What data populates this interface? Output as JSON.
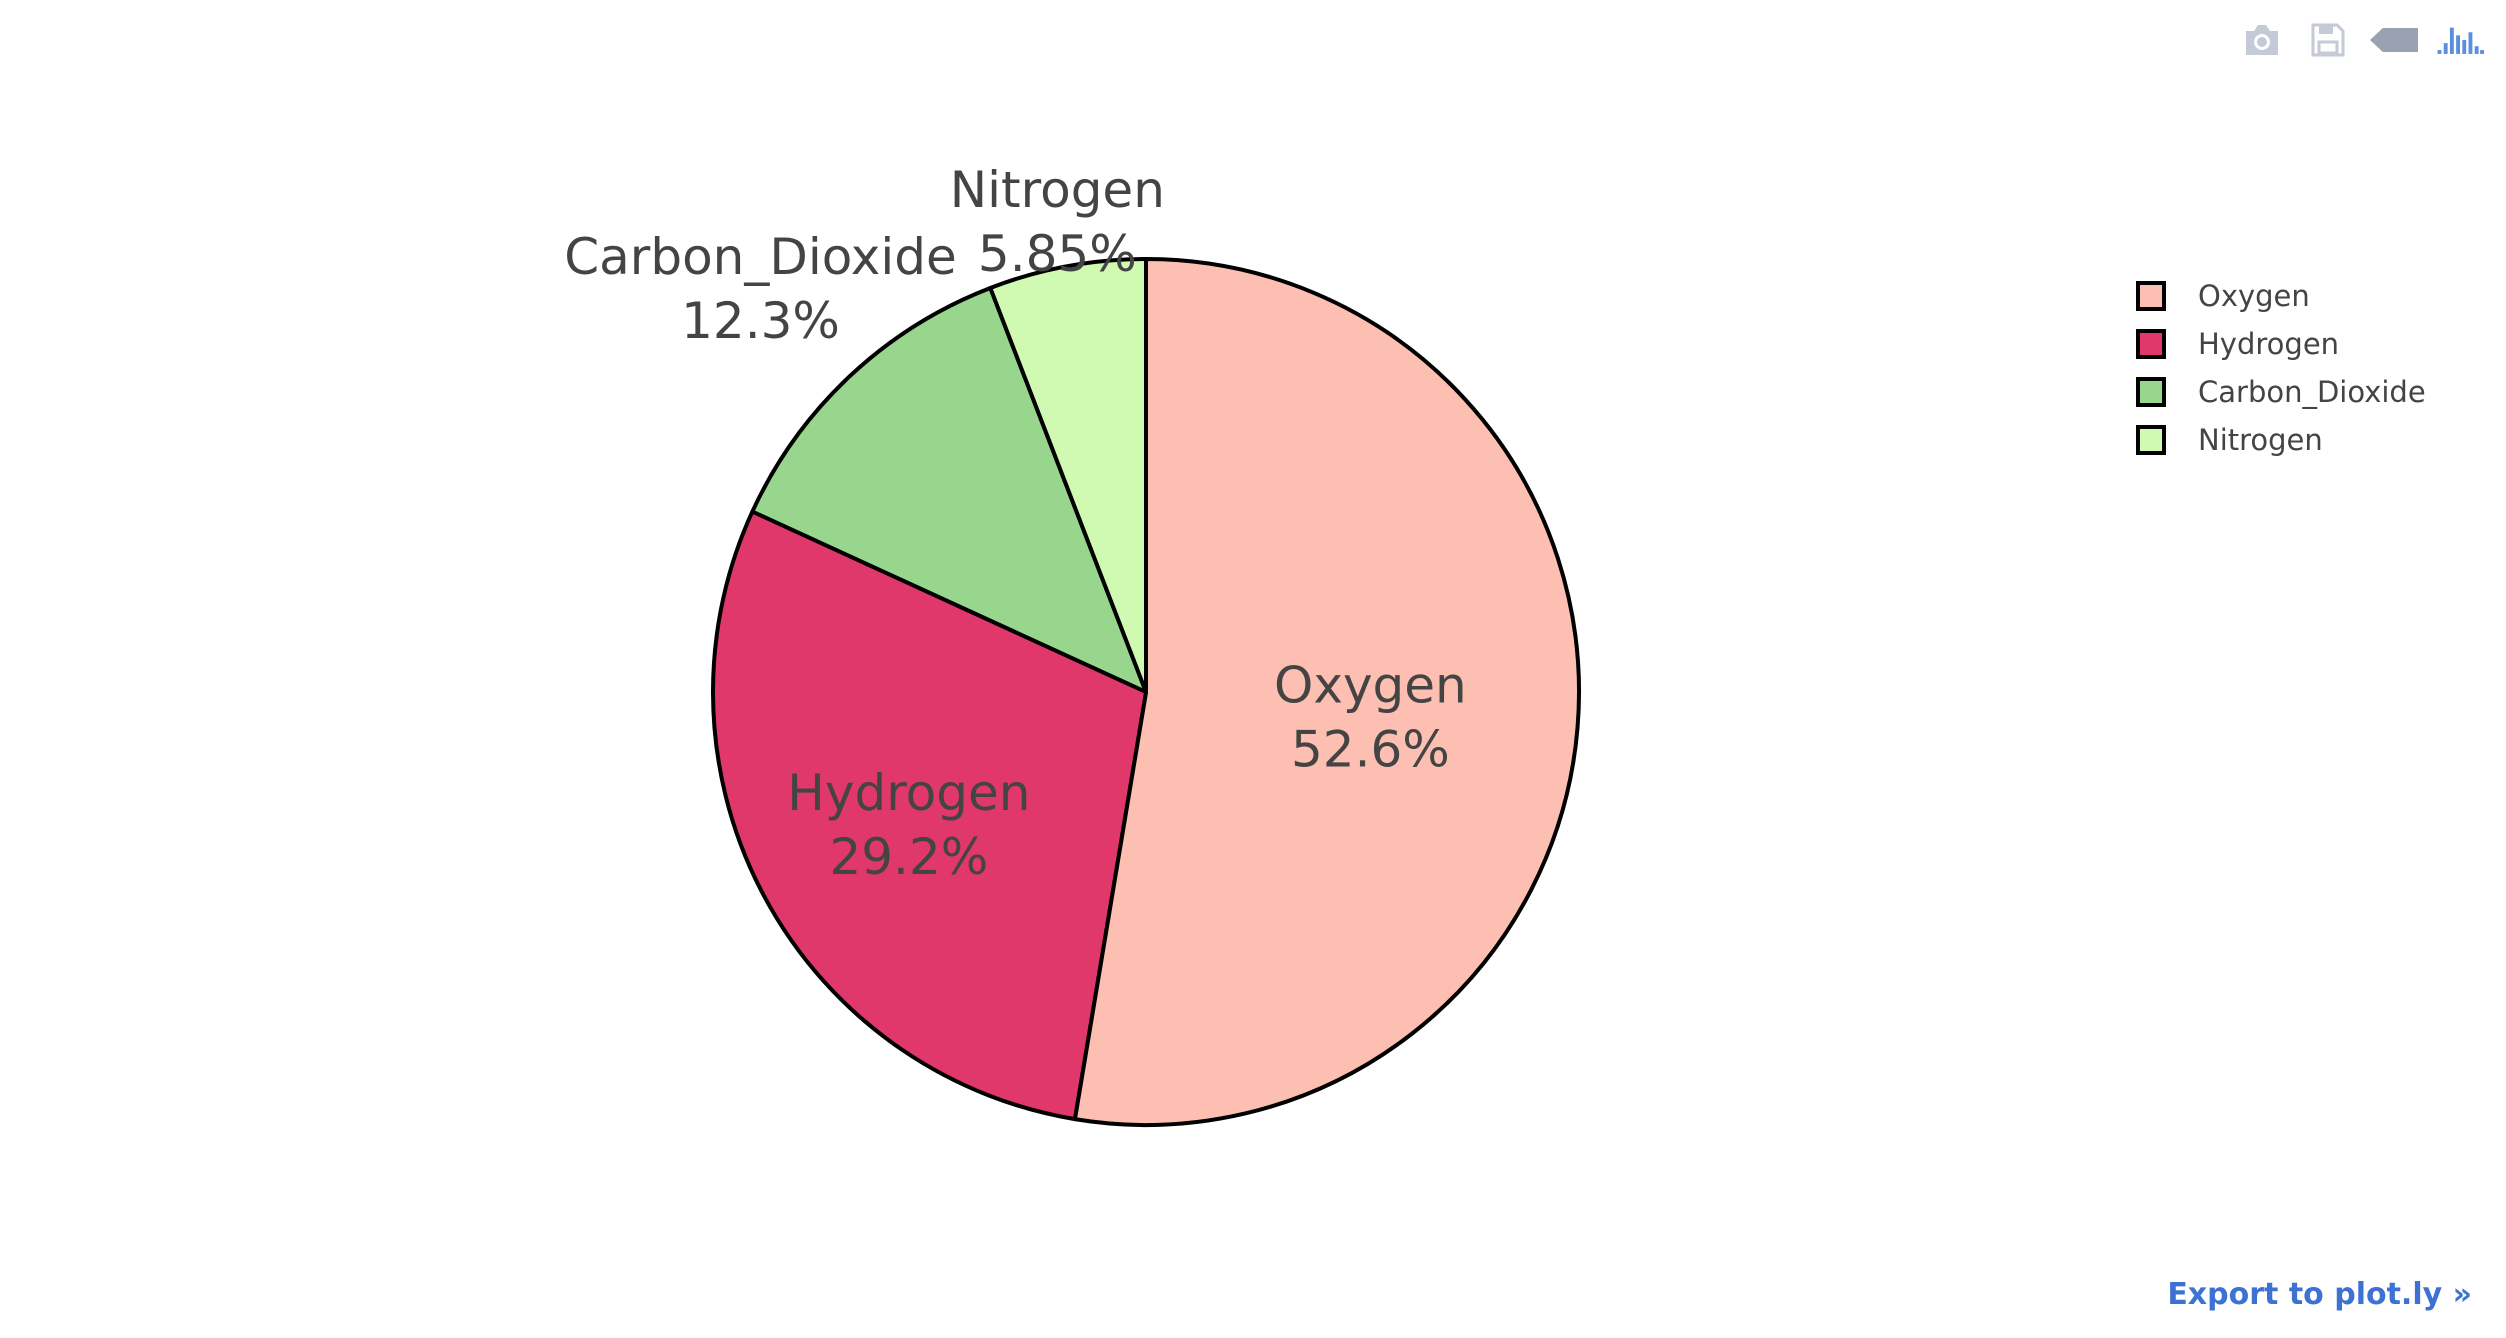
{
  "modebar": {
    "icons": [
      "camera-icon",
      "save-icon",
      "back-icon",
      "plotly-logo-icon"
    ]
  },
  "export": {
    "label": "Export to plot.ly »"
  },
  "chart_data": {
    "type": "pie",
    "labels": [
      "Oxygen",
      "Hydrogen",
      "Carbon_Dioxide",
      "Nitrogen"
    ],
    "values": [
      52.6,
      29.2,
      12.3,
      5.85
    ],
    "percent_labels": [
      "52.6%",
      "29.2%",
      "12.3%",
      "5.85%"
    ],
    "colors": [
      "#fcbfb1",
      "#e0386a",
      "#98d68d",
      "#d0f9b1"
    ],
    "outline_color": "#000000",
    "direction": "clockwise",
    "start": "top",
    "legend_position": "top-right",
    "label_color": "#444444"
  }
}
